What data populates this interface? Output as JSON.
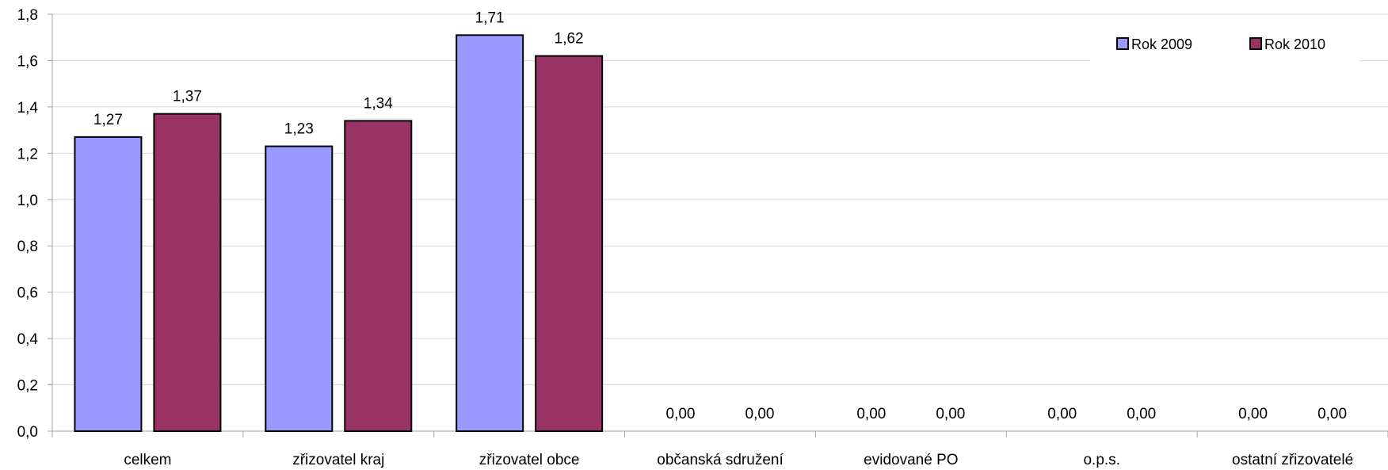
{
  "chart_data": {
    "type": "bar",
    "categories": [
      "celkem",
      "zřizovatel kraj",
      "zřizovatel obce",
      "občanská sdružení",
      "evidované PO",
      "o.p.s.",
      "ostatní zřizovatelé"
    ],
    "series": [
      {
        "name": "Rok 2009",
        "values": [
          1.27,
          1.23,
          1.71,
          0.0,
          0.0,
          0.0,
          0.0
        ],
        "labels": [
          "1,27",
          "1,23",
          "1,71",
          "0,00",
          "0,00",
          "0,00",
          "0,00"
        ],
        "color": "#9999ff"
      },
      {
        "name": "Rok 2010",
        "values": [
          1.37,
          1.34,
          1.62,
          0.0,
          0.0,
          0.0,
          0.0
        ],
        "labels": [
          "1,37",
          "1,34",
          "1,62",
          "0,00",
          "0,00",
          "0,00",
          "0,00"
        ],
        "color": "#993366"
      }
    ],
    "y_ticks": [
      0,
      0.2,
      0.4,
      0.6,
      0.8,
      1.0,
      1.2,
      1.4,
      1.6,
      1.8
    ],
    "y_tick_labels": [
      "0,0",
      "0,2",
      "0,4",
      "0,6",
      "0,8",
      "1,0",
      "1,2",
      "1,4",
      "1,6",
      "1,8"
    ],
    "ylim": [
      0,
      1.8
    ],
    "grid": true,
    "legend_position": "top-right",
    "gridline_color": "#d9d9d9",
    "axis_color": "#a6a6a6",
    "bar_outline_color": "#000000"
  }
}
